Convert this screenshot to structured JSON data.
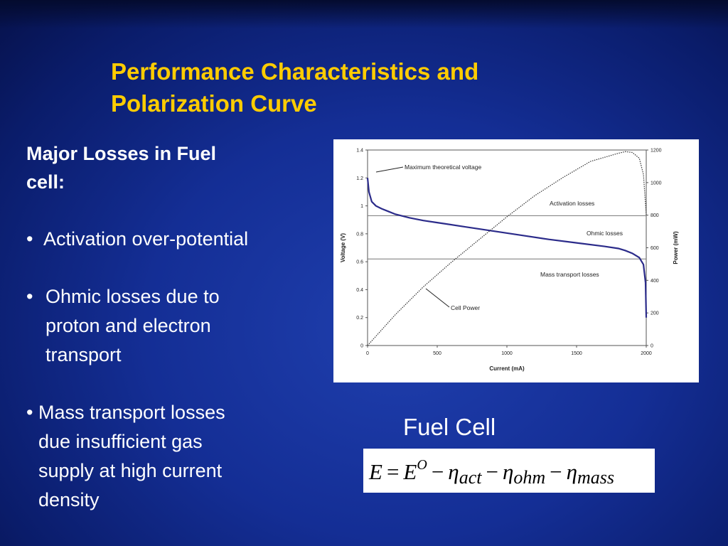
{
  "title": {
    "line1": "Performance Characteristics and",
    "line2": "Polarization Curve"
  },
  "losses": {
    "heading_line1": "Major Losses in Fuel",
    "heading_line2": "cell:",
    "bullet_glyph": "•",
    "b1": "Activation over-potential",
    "b2_l1": "Ohmic losses due to",
    "b2_l2": "proton and electron",
    "b2_l3": "transport",
    "b3_l1": "Mass transport losses",
    "b3_l2": "due insufficient gas",
    "b3_l3": "supply at high current",
    "b3_l4": "density"
  },
  "caption": "Fuel Cell",
  "equation": {
    "E": "E",
    "eq": "=",
    "E0": "E",
    "E0_sup": "O",
    "minus": "−",
    "eta": "η",
    "act": "act",
    "ohm": "ohm",
    "mass": "mass"
  },
  "chart_data": {
    "type": "line",
    "xlabel": "Current (mA)",
    "ylabel": "Voltage (V)",
    "y2label": "Power (mW)",
    "xlim": [
      0,
      2000
    ],
    "ylim": [
      0,
      1.4
    ],
    "y2lim": [
      0,
      1200
    ],
    "x_ticks": [
      "0",
      "500",
      "1000",
      "1500",
      "2000"
    ],
    "y_ticks": [
      "0",
      "0.2",
      "0.4",
      "0.6",
      "0.8",
      "1",
      "1.2",
      "1.4"
    ],
    "y2_ticks": [
      "0",
      "200",
      "400",
      "600",
      "800",
      "1000",
      "1200"
    ],
    "ref_lines_voltage": [
      0.93,
      0.62
    ],
    "series": [
      {
        "x": [
          0,
          10,
          30,
          60,
          100,
          150,
          200,
          300,
          400,
          500,
          700,
          900,
          1100,
          1300,
          1500,
          1700,
          1800,
          1850,
          1900,
          1950,
          1980,
          1995,
          2000
        ],
        "values": [
          1.2,
          1.1,
          1.03,
          1.0,
          0.98,
          0.96,
          0.94,
          0.915,
          0.895,
          0.88,
          0.85,
          0.82,
          0.79,
          0.76,
          0.735,
          0.71,
          0.695,
          0.68,
          0.66,
          0.63,
          0.58,
          0.45,
          0.2
        ]
      },
      {
        "x": [
          0,
          200,
          400,
          600,
          800,
          1000,
          1200,
          1400,
          1600,
          1800,
          1850,
          1900,
          1950,
          1980,
          2000
        ],
        "values": [
          0,
          190,
          360,
          510,
          650,
          790,
          920,
          1030,
          1130,
          1180,
          1190,
          1185,
          1150,
          1050,
          800
        ]
      }
    ],
    "annotations": [
      "Maximum theoretical voltage",
      "Activation losses",
      "Ohmic losses",
      "Mass transport losses",
      "Cell Power"
    ]
  }
}
